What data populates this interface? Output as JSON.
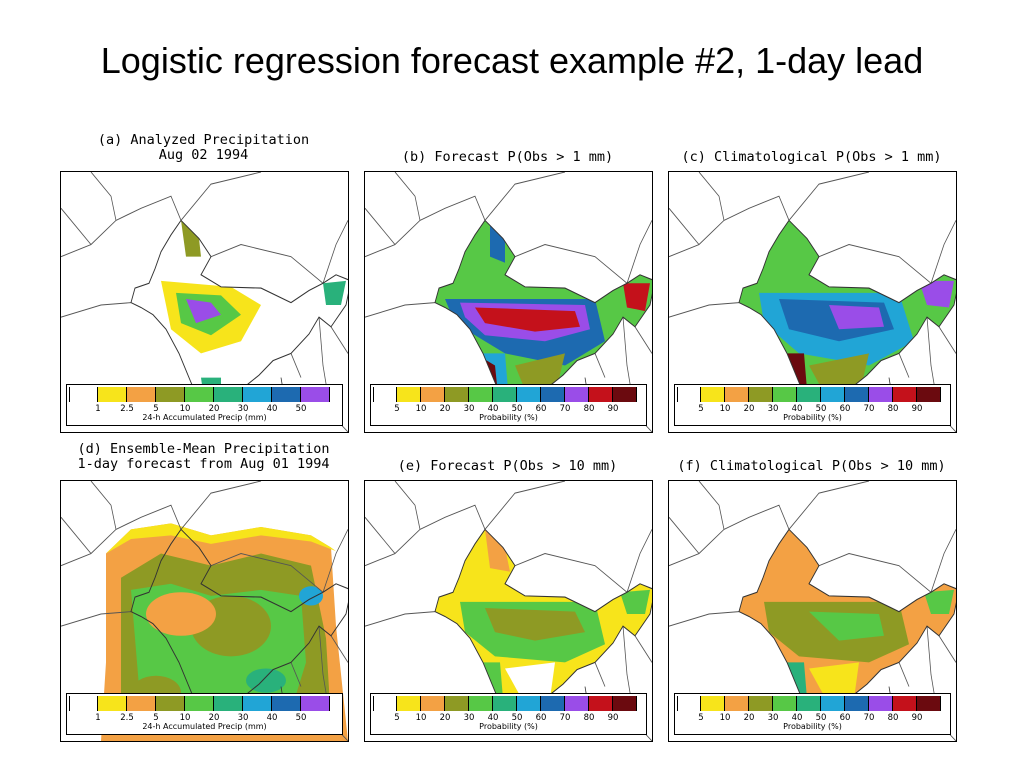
{
  "title": "Logistic regression forecast example #2, 1-day lead",
  "colorbars": {
    "precip": {
      "ticks": [
        "1",
        "2.5",
        "5",
        "10",
        "20",
        "30",
        "40",
        "50"
      ],
      "caption": "24-h Accumulated Precip (mm)",
      "colors": [
        "#ffffff",
        "#f7e41b",
        "#f3a144",
        "#8e9a24",
        "#57c846",
        "#29b17b",
        "#21a5d6",
        "#1d6ab0",
        "#9a4de8"
      ]
    },
    "prob": {
      "ticks": [
        "5",
        "10",
        "20",
        "30",
        "40",
        "50",
        "60",
        "70",
        "80",
        "90"
      ],
      "caption": "Probability (%)",
      "colors": [
        "#ffffff",
        "#f7e41b",
        "#f3a144",
        "#8e9a24",
        "#57c846",
        "#29b17b",
        "#21a5d6",
        "#1d6ab0",
        "#9a4de8",
        "#c4111b",
        "#6b0a0f"
      ]
    }
  },
  "panels": [
    {
      "id": "a",
      "label": "(a) Analyzed Precipitation\nAug 02 1994",
      "scale": "precip"
    },
    {
      "id": "b",
      "label": "(b) Forecast P(Obs > 1 mm)",
      "scale": "prob"
    },
    {
      "id": "c",
      "label": "(c) Climatological P(Obs > 1 mm)",
      "scale": "prob"
    },
    {
      "id": "d",
      "label": "(d) Ensemble-Mean Precipitation\n1-day forecast from Aug 01 1994",
      "scale": "precip"
    },
    {
      "id": "e",
      "label": "(e) Forecast P(Obs > 10 mm)",
      "scale": "prob"
    },
    {
      "id": "f",
      "label": "(f) Climatological P(Obs > 10 mm)",
      "scale": "prob"
    }
  ]
}
